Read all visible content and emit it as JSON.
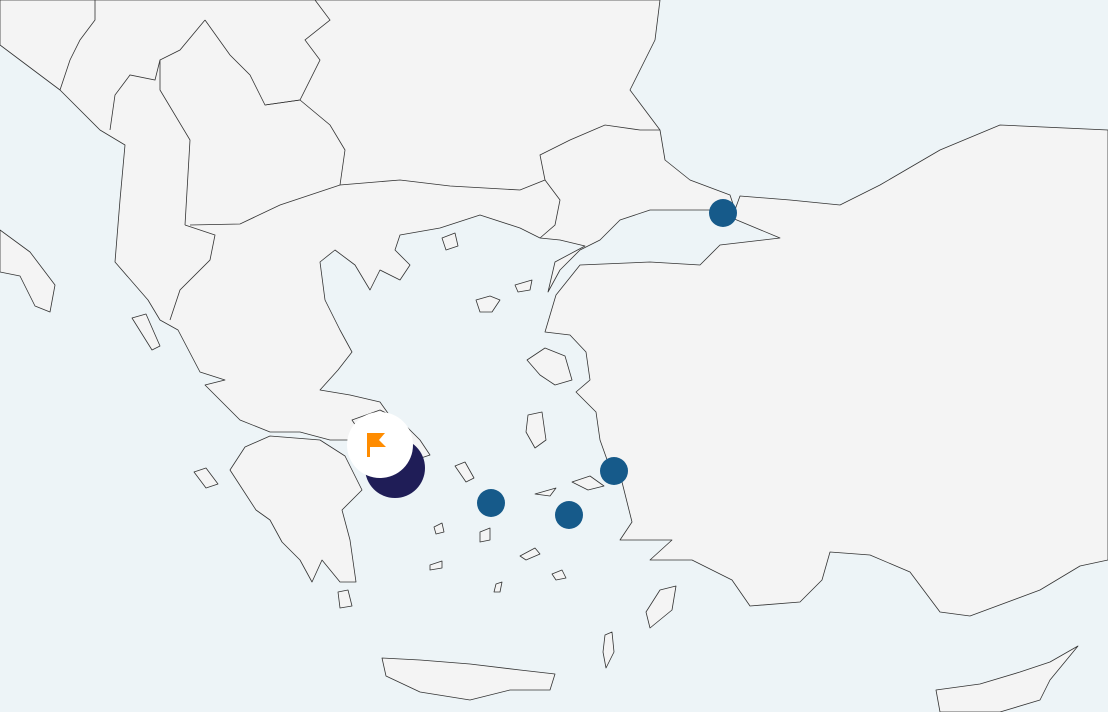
{
  "map": {
    "colors": {
      "sea": "#edf4f7",
      "land": "#f4f4f4",
      "border": "#333333",
      "marker": "#165a8a",
      "selected_marker": "#1f1d57",
      "flag": "#ff8c00",
      "flag_badge": "#ffffff"
    },
    "markers": [
      {
        "kind": "location",
        "icon": "circle"
      },
      {
        "kind": "location",
        "icon": "circle"
      },
      {
        "kind": "location",
        "icon": "circle"
      },
      {
        "kind": "location",
        "icon": "circle"
      },
      {
        "kind": "selected-location",
        "icon": "flag-icon"
      }
    ]
  }
}
